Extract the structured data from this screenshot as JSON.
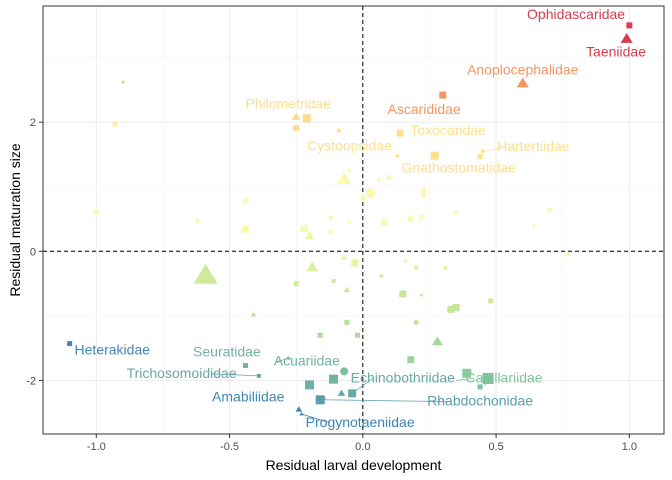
{
  "chart_data": {
    "type": "scatter",
    "title": "",
    "xlabel": "Residual larval development",
    "ylabel": "Residual maturation size",
    "xlim": [
      -1.2,
      1.13
    ],
    "ylim": [
      -2.83,
      3.8
    ],
    "x_ticks": [
      "-1.0",
      "-0.5",
      "0.0",
      "0.5",
      "1.0"
    ],
    "y_ticks": [
      "-2",
      "0",
      "2"
    ],
    "grid": true,
    "legend": "none",
    "reference_lines": [
      {
        "axis": "x",
        "value": 0,
        "style": "dashed"
      },
      {
        "axis": "y",
        "value": 0,
        "style": "dashed"
      }
    ],
    "points": [
      {
        "x": 1.0,
        "y": 3.5,
        "shape": "square",
        "size": 6,
        "color": "#d53e4f"
      },
      {
        "x": 0.99,
        "y": 3.29,
        "shape": "triangle",
        "size": 11,
        "color": "#d53e4f"
      },
      {
        "x": 0.6,
        "y": 2.6,
        "shape": "triangle",
        "size": 11,
        "color": "#f4955f"
      },
      {
        "x": 0.3,
        "y": 2.42,
        "shape": "square",
        "size": 7,
        "color": "#f4955f"
      },
      {
        "x": -0.9,
        "y": 2.62,
        "shape": "dot",
        "size": 3,
        "color": "#f9c87e"
      },
      {
        "x": -0.25,
        "y": 2.08,
        "shape": "triangle",
        "size": 8,
        "color": "#fdd98b"
      },
      {
        "x": -0.21,
        "y": 2.06,
        "shape": "square",
        "size": 8,
        "color": "#fdd98b"
      },
      {
        "x": -0.25,
        "y": 1.91,
        "shape": "square",
        "size": 6,
        "color": "#fdd98b"
      },
      {
        "x": -0.93,
        "y": 1.97,
        "shape": "square",
        "size": 5,
        "color": "#fdf0a4"
      },
      {
        "x": -0.09,
        "y": 1.87,
        "shape": "square",
        "size": 4,
        "color": "#fde08b"
      },
      {
        "x": 0.14,
        "y": 1.83,
        "shape": "square",
        "size": 7,
        "color": "#fde08b"
      },
      {
        "x": 0.27,
        "y": 1.48,
        "shape": "square",
        "size": 8,
        "color": "#fde08b"
      },
      {
        "x": 0.44,
        "y": 1.47,
        "shape": "square",
        "size": 5,
        "color": "#fde08b"
      },
      {
        "x": 0.45,
        "y": 1.55,
        "shape": "dot",
        "size": 4,
        "color": "#fde08b"
      },
      {
        "x": 0.13,
        "y": 1.48,
        "shape": "diamond",
        "size": 4,
        "color": "#fde08b"
      },
      {
        "x": 0.1,
        "y": 1.15,
        "shape": "triangle",
        "size": 6,
        "color": "#fdf4a4"
      },
      {
        "x": 0.06,
        "y": 1.12,
        "shape": "triangle",
        "size": 4,
        "color": "#fdf4a4"
      },
      {
        "x": 0.23,
        "y": 0.95,
        "shape": "diamond",
        "size": 5,
        "color": "#fdf4a4"
      },
      {
        "x": 0.23,
        "y": 0.88,
        "shape": "triangle",
        "size": 6,
        "color": "#fdf4a4"
      },
      {
        "x": -0.07,
        "y": 1.12,
        "shape": "triangle",
        "size": 13,
        "color": "#fbf8b0"
      },
      {
        "x": 0.03,
        "y": 0.9,
        "shape": "dot",
        "size": 10,
        "color": "#fbf8b0"
      },
      {
        "x": 0.0,
        "y": 0.82,
        "shape": "diamond",
        "size": 6,
        "color": "#fbf8b0"
      },
      {
        "x": -0.05,
        "y": 1.25,
        "shape": "dot",
        "size": 4,
        "color": "#fbf8b0"
      },
      {
        "x": -0.44,
        "y": 0.78,
        "shape": "square",
        "size": 5,
        "color": "#fbf8b0"
      },
      {
        "x": -1.0,
        "y": 0.61,
        "shape": "square",
        "size": 5,
        "color": "#f7faaf"
      },
      {
        "x": -0.62,
        "y": 0.47,
        "shape": "square",
        "size": 4,
        "color": "#f7faaf"
      },
      {
        "x": -0.44,
        "y": 0.34,
        "shape": "square",
        "size": 7,
        "color": "#f7faaf"
      },
      {
        "x": -0.22,
        "y": 0.35,
        "shape": "square",
        "size": 7,
        "color": "#f7faaf"
      },
      {
        "x": -0.2,
        "y": 0.24,
        "shape": "triangle",
        "size": 9,
        "color": "#f0f8a8"
      },
      {
        "x": -0.12,
        "y": 0.52,
        "shape": "square",
        "size": 4,
        "color": "#f7faaf"
      },
      {
        "x": -0.12,
        "y": 0.3,
        "shape": "square",
        "size": 4,
        "color": "#f7faaf"
      },
      {
        "x": -0.05,
        "y": 0.45,
        "shape": "dot",
        "size": 4,
        "color": "#f7faaf"
      },
      {
        "x": 0.08,
        "y": 0.45,
        "shape": "square",
        "size": 6,
        "color": "#f7faaf"
      },
      {
        "x": 0.18,
        "y": 0.5,
        "shape": "square",
        "size": 6,
        "color": "#f7faaf"
      },
      {
        "x": 0.22,
        "y": 0.53,
        "shape": "square",
        "size": 4,
        "color": "#f7faaf"
      },
      {
        "x": 0.35,
        "y": 0.6,
        "shape": "square",
        "size": 4,
        "color": "#f7faaf"
      },
      {
        "x": 0.7,
        "y": 0.64,
        "shape": "square",
        "size": 5,
        "color": "#f7faaf"
      },
      {
        "x": 0.64,
        "y": 0.4,
        "shape": "dot",
        "size": 3,
        "color": "#f7faaf"
      },
      {
        "x": 0.77,
        "y": -0.05,
        "shape": "triangle",
        "size": 5,
        "color": "#f0f8a8"
      },
      {
        "x": -0.59,
        "y": -0.38,
        "shape": "triangle",
        "size": 22,
        "color": "#cfeb9a"
      },
      {
        "x": -0.19,
        "y": -0.25,
        "shape": "triangle",
        "size": 11,
        "color": "#dcf19e"
      },
      {
        "x": -0.07,
        "y": -0.1,
        "shape": "triangle",
        "size": 6,
        "color": "#e6f59e"
      },
      {
        "x": 0.16,
        "y": -0.15,
        "shape": "dot",
        "size": 3,
        "color": "#e6f59e"
      },
      {
        "x": -0.03,
        "y": -0.18,
        "shape": "square",
        "size": 7,
        "color": "#e6f59e"
      },
      {
        "x": 0.2,
        "y": -0.25,
        "shape": "square",
        "size": 4,
        "color": "#dcf19e"
      },
      {
        "x": 0.31,
        "y": -0.25,
        "shape": "triangle",
        "size": 5,
        "color": "#d9ef9c"
      },
      {
        "x": -0.25,
        "y": -0.5,
        "shape": "square",
        "size": 5,
        "color": "#d0ec9b"
      },
      {
        "x": -0.11,
        "y": -0.46,
        "shape": "square",
        "size": 4,
        "color": "#d0ec9b"
      },
      {
        "x": 0.07,
        "y": -0.38,
        "shape": "diamond",
        "size": 4,
        "color": "#d0ec9b"
      },
      {
        "x": -0.06,
        "y": -0.6,
        "shape": "triangle",
        "size": 6,
        "color": "#c6e79a"
      },
      {
        "x": 0.15,
        "y": -0.66,
        "shape": "square",
        "size": 7,
        "color": "#c6e79a"
      },
      {
        "x": 0.22,
        "y": -0.68,
        "shape": "dot",
        "size": 3,
        "color": "#c6e79a"
      },
      {
        "x": 0.48,
        "y": -0.77,
        "shape": "square",
        "size": 5,
        "color": "#d0ec9b"
      },
      {
        "x": 0.33,
        "y": -0.9,
        "shape": "square",
        "size": 7,
        "color": "#c6e79a"
      },
      {
        "x": 0.35,
        "y": -0.87,
        "shape": "square",
        "size": 7,
        "color": "#c6e79a"
      },
      {
        "x": -0.41,
        "y": -0.98,
        "shape": "triangle",
        "size": 5,
        "color": "#b7e19a"
      },
      {
        "x": -0.06,
        "y": -1.1,
        "shape": "square",
        "size": 5,
        "color": "#b7e19a"
      },
      {
        "x": 0.2,
        "y": -1.1,
        "shape": "diamond",
        "size": 5,
        "color": "#b7e19a"
      },
      {
        "x": -0.16,
        "y": -1.3,
        "shape": "square",
        "size": 5,
        "color": "#aadb9a"
      },
      {
        "x": -0.02,
        "y": -1.3,
        "shape": "square",
        "size": 5,
        "color": "#aadb9a"
      },
      {
        "x": 0.28,
        "y": -1.4,
        "shape": "triangle",
        "size": 10,
        "color": "#a5d89b"
      },
      {
        "x": 0.18,
        "y": -1.68,
        "shape": "square",
        "size": 7,
        "color": "#9fd59b"
      },
      {
        "x": 0.39,
        "y": -1.89,
        "shape": "square",
        "size": 9,
        "color": "#8ccd9b"
      },
      {
        "x": 0.47,
        "y": -1.97,
        "shape": "square",
        "size": 11,
        "color": "#7ec49c"
      },
      {
        "x": 0.44,
        "y": -2.1,
        "shape": "square",
        "size": 5,
        "color": "#7ec49c"
      },
      {
        "x": -0.07,
        "y": -1.86,
        "shape": "dot",
        "size": 8,
        "color": "#7fbe9e"
      },
      {
        "x": -0.11,
        "y": -1.98,
        "shape": "square",
        "size": 9,
        "color": "#74b5a2"
      },
      {
        "x": -0.2,
        "y": -2.07,
        "shape": "square",
        "size": 9,
        "color": "#6eb0a4"
      },
      {
        "x": -0.04,
        "y": -2.2,
        "shape": "square",
        "size": 8,
        "color": "#66a9a8"
      },
      {
        "x": -0.08,
        "y": -2.2,
        "shape": "triangle",
        "size": 7,
        "color": "#66a9a8"
      },
      {
        "x": -0.15,
        "y": -2.28,
        "shape": "dot",
        "size": 5,
        "color": "#5fa2aa"
      },
      {
        "x": -0.16,
        "y": -2.3,
        "shape": "square",
        "size": 9,
        "color": "#5b9dac"
      },
      {
        "x": -0.24,
        "y": -2.45,
        "shape": "triangle",
        "size": 6,
        "color": "#3f88b8"
      },
      {
        "x": -0.23,
        "y": -2.52,
        "shape": "triangle",
        "size": 4,
        "color": "#3b84b9"
      },
      {
        "x": -1.1,
        "y": -1.43,
        "shape": "square",
        "size": 5,
        "color": "#4486b7"
      },
      {
        "x": -0.44,
        "y": -1.77,
        "shape": "square",
        "size": 5,
        "color": "#74b0a6"
      },
      {
        "x": -0.39,
        "y": -1.93,
        "shape": "square",
        "size": 4,
        "color": "#6ea6a8"
      },
      {
        "x": -0.28,
        "y": -1.65,
        "shape": "triangle",
        "size": 4,
        "color": "#7fbfa2"
      }
    ],
    "labels": [
      {
        "text": "Ophidascaridae",
        "x": 0.8,
        "y": 3.6,
        "color": "#d53e4f",
        "anchor": "middle",
        "leader_to": null
      },
      {
        "text": "Taeniidae",
        "x": 0.95,
        "y": 3.02,
        "color": "#d53e4f",
        "anchor": "middle",
        "leader_to": null
      },
      {
        "text": "Anoplocephalidae",
        "x": 0.6,
        "y": 2.74,
        "color": "#f4955f",
        "anchor": "middle",
        "leader_to": null
      },
      {
        "text": "Ascarididae",
        "x": 0.23,
        "y": 2.13,
        "color": "#f4955f",
        "anchor": "middle",
        "leader_to": null
      },
      {
        "text": "Philometridae",
        "x": -0.28,
        "y": 2.21,
        "color": "#fde08b",
        "anchor": "middle",
        "leader_to": null
      },
      {
        "text": "Toxocaridae",
        "x": 0.32,
        "y": 1.8,
        "color": "#fde08b",
        "anchor": "middle",
        "leader_to": null
      },
      {
        "text": "Cystoopsidae",
        "x": -0.05,
        "y": 1.56,
        "color": "#fde08b",
        "anchor": "middle",
        "leader_to": null
      },
      {
        "text": "Hartertiidae",
        "x": 0.64,
        "y": 1.55,
        "color": "#fde08b",
        "anchor": "middle",
        "leader_to": {
          "x": 0.46,
          "y": 1.55
        }
      },
      {
        "text": "Gnathostomatidae",
        "x": 0.36,
        "y": 1.22,
        "color": "#fde08b",
        "anchor": "middle",
        "leader_to": null
      },
      {
        "text": "Heterakidae",
        "x": -0.94,
        "y": -1.6,
        "color": "#4486b7",
        "anchor": "middle",
        "leader_to": null
      },
      {
        "text": "Seuratidae",
        "x": -0.51,
        "y": -1.63,
        "color": "#74b0a6",
        "anchor": "middle",
        "leader_to": null
      },
      {
        "text": "Acuariidae",
        "x": -0.21,
        "y": -1.77,
        "color": "#74b0a6",
        "anchor": "middle",
        "leader_to": {
          "x": -0.27,
          "y": -1.65
        }
      },
      {
        "text": "Trichosomoididae",
        "x": -0.68,
        "y": -1.96,
        "color": "#6ea6a8",
        "anchor": "middle",
        "leader_to": {
          "x": -0.39,
          "y": -1.93
        }
      },
      {
        "text": "Echinobothriidae",
        "x": 0.15,
        "y": -2.03,
        "color": "#66a9a8",
        "anchor": "middle",
        "leader_to": {
          "x": -0.04,
          "y": -2.2
        }
      },
      {
        "text": "Capillariidae",
        "x": 0.53,
        "y": -2.03,
        "color": "#7ec49c",
        "anchor": "middle",
        "leader_to": {
          "x": 0.35,
          "y": -2.0
        }
      },
      {
        "text": "Amabiliidae",
        "x": -0.43,
        "y": -2.33,
        "color": "#3f88b8",
        "anchor": "middle",
        "leader_to": null
      },
      {
        "text": "Rhabdochonidae",
        "x": 0.44,
        "y": -2.39,
        "color": "#5b9dac",
        "anchor": "middle",
        "leader_to": {
          "x": -0.15,
          "y": -2.3
        }
      },
      {
        "text": "Progynotaeniidae",
        "x": -0.01,
        "y": -2.72,
        "color": "#3b84b9",
        "anchor": "middle",
        "leader_to": {
          "x": -0.23,
          "y": -2.52
        }
      }
    ]
  }
}
